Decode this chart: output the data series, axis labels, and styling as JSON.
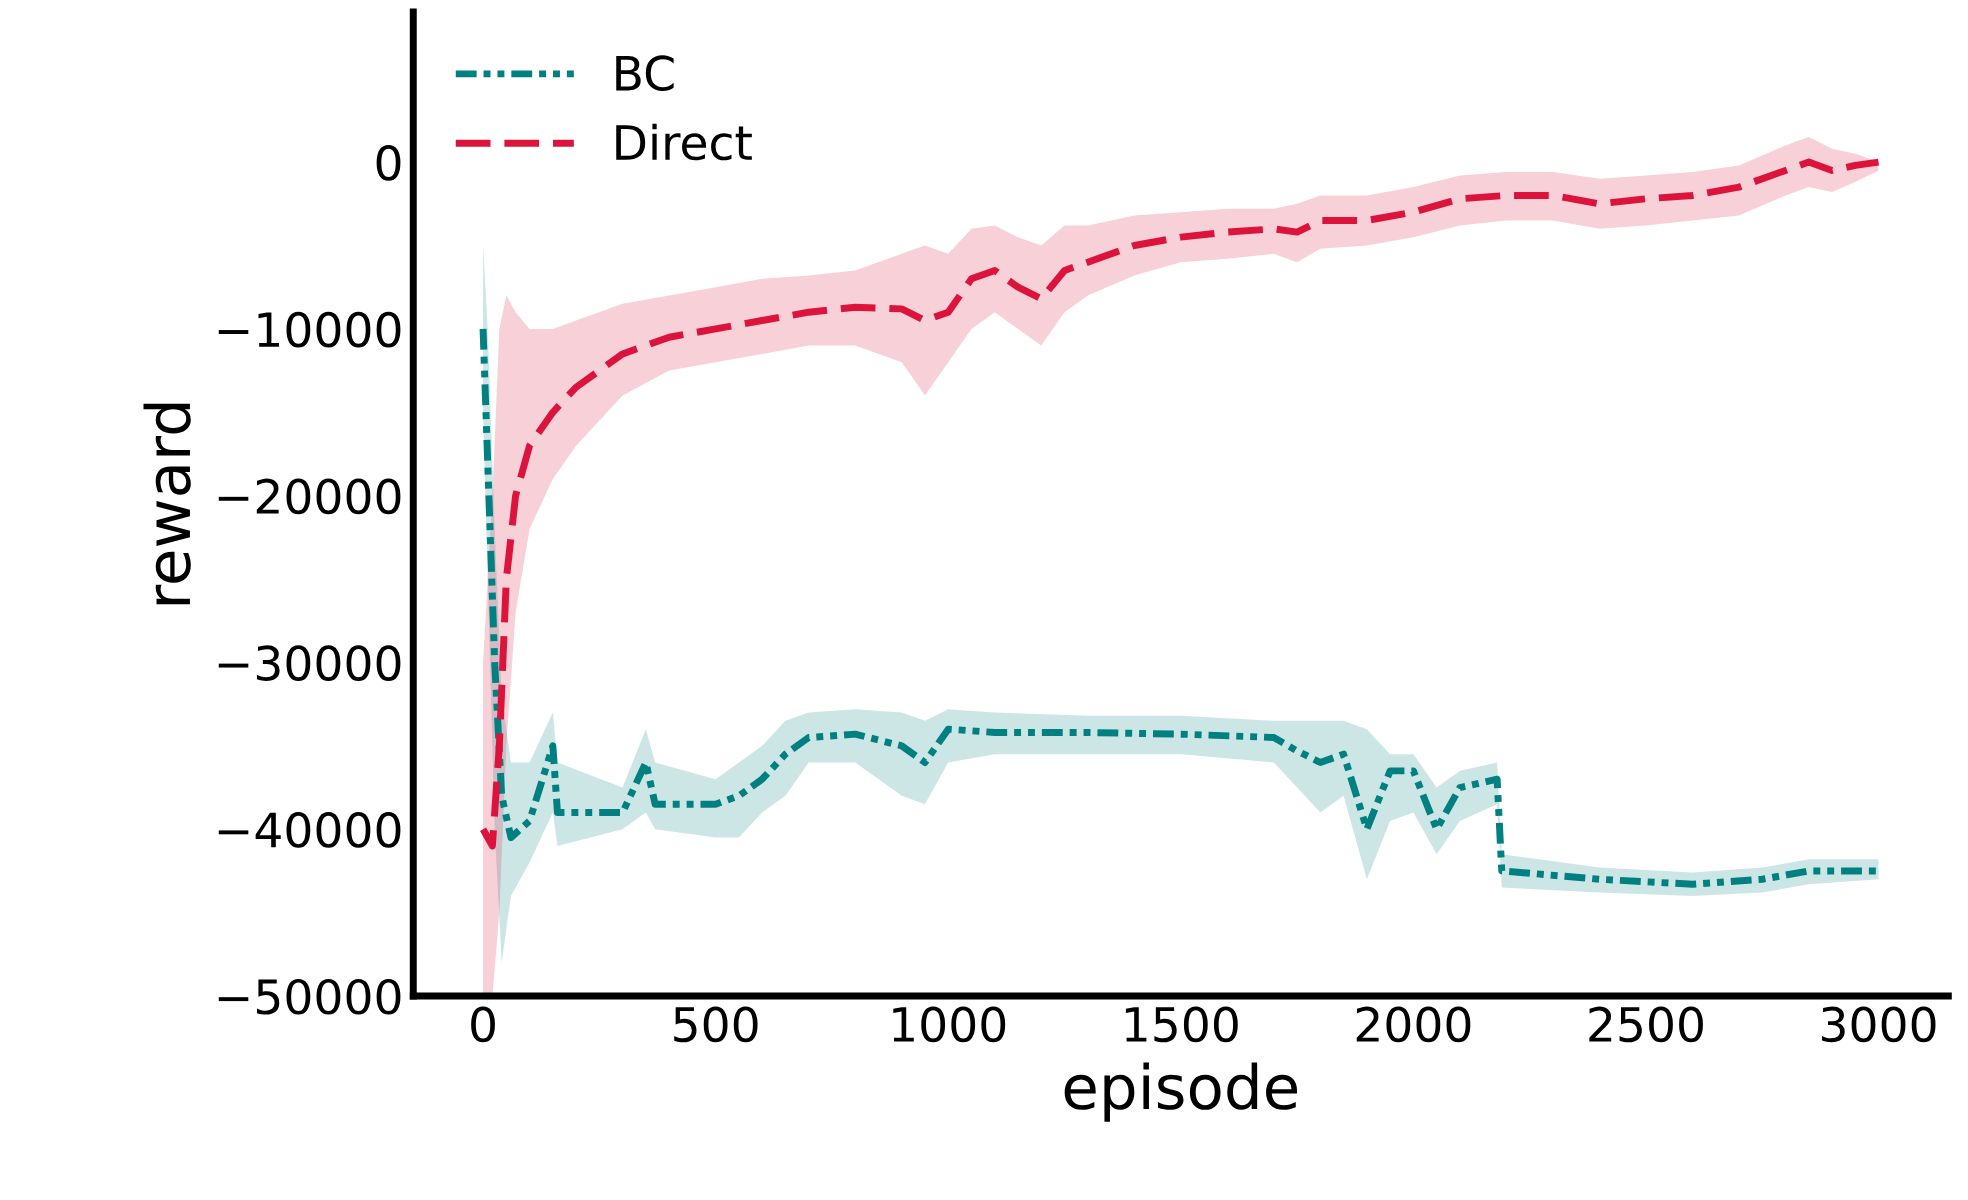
{
  "chart_data": {
    "type": "line",
    "xlabel": "episode",
    "ylabel": "reward",
    "xlim": [
      -150,
      3150
    ],
    "ylim": [
      -50000,
      9000
    ],
    "xticks": [
      0,
      500,
      1000,
      1500,
      2000,
      2500,
      3000
    ],
    "yticks": [
      {
        "value": 0,
        "label": "0"
      },
      {
        "value": -10000,
        "label": "−10000"
      },
      {
        "value": -20000,
        "label": "−20000"
      },
      {
        "value": -30000,
        "label": "−30000"
      },
      {
        "value": -40000,
        "label": "−40000"
      },
      {
        "value": -50000,
        "label": "−50000"
      }
    ],
    "grid": false,
    "legend": "top left",
    "marker": "none",
    "series": [
      {
        "name": "BC",
        "color": "#008080",
        "line_style": "dashdot",
        "x": [
          0,
          10,
          25,
          40,
          60,
          100,
          150,
          160,
          300,
          350,
          370,
          500,
          550,
          600,
          650,
          700,
          800,
          900,
          950,
          1000,
          1100,
          1300,
          1500,
          1700,
          1750,
          1800,
          1850,
          1900,
          1950,
          2000,
          2050,
          2100,
          2180,
          2190,
          2400,
          2600,
          2750,
          2850,
          3000
        ],
        "values": [
          -10000,
          -18000,
          -30000,
          -38000,
          -40500,
          -39500,
          -35000,
          -39000,
          -39000,
          -36000,
          -38500,
          -38500,
          -38000,
          -37000,
          -35500,
          -34500,
          -34300,
          -35000,
          -36000,
          -34000,
          -34200,
          -34200,
          -34300,
          -34500,
          -35300,
          -36000,
          -35500,
          -40000,
          -36500,
          -36500,
          -40000,
          -37500,
          -37000,
          -42500,
          -43000,
          -43300,
          -43000,
          -42500,
          -42500
        ],
        "lower": [
          -15000,
          -25000,
          -40000,
          -48000,
          -44000,
          -42000,
          -39000,
          -41000,
          -40000,
          -39000,
          -40000,
          -40500,
          -40500,
          -39000,
          -38000,
          -36000,
          -36000,
          -38000,
          -38500,
          -36000,
          -35500,
          -35500,
          -35500,
          -36000,
          -37500,
          -39000,
          -38000,
          -43000,
          -39500,
          -39000,
          -41500,
          -39500,
          -38500,
          -43500,
          -43800,
          -44000,
          -43800,
          -43300,
          -43000
        ],
        "upper": [
          -5000,
          -10000,
          -22000,
          -32000,
          -36000,
          -36000,
          -33000,
          -36000,
          -37500,
          -34000,
          -36000,
          -37000,
          -36000,
          -35000,
          -33500,
          -33000,
          -32800,
          -33000,
          -33500,
          -32800,
          -33000,
          -33200,
          -33200,
          -33500,
          -33500,
          -33500,
          -33500,
          -34000,
          -35500,
          -35500,
          -37500,
          -36500,
          -36000,
          -41500,
          -42300,
          -42600,
          -42300,
          -41800,
          -41800
        ]
      },
      {
        "name": "Direct",
        "color": "#dc143c",
        "line_style": "dashed",
        "x": [
          0,
          20,
          35,
          50,
          70,
          100,
          150,
          200,
          300,
          400,
          500,
          600,
          700,
          800,
          900,
          950,
          1000,
          1050,
          1100,
          1150,
          1200,
          1250,
          1300,
          1400,
          1500,
          1600,
          1700,
          1750,
          1800,
          1900,
          2000,
          2100,
          2200,
          2300,
          2400,
          2500,
          2600,
          2700,
          2800,
          2850,
          2900,
          2950,
          3000
        ],
        "values": [
          -40000,
          -41000,
          -35000,
          -25000,
          -20000,
          -17000,
          -15000,
          -13500,
          -11500,
          -10500,
          -10000,
          -9500,
          -9000,
          -8700,
          -8800,
          -9500,
          -9000,
          -7000,
          -6500,
          -7500,
          -8200,
          -6500,
          -6000,
          -5000,
          -4500,
          -4200,
          -4000,
          -4200,
          -3500,
          -3500,
          -3000,
          -2200,
          -2000,
          -2000,
          -2500,
          -2200,
          -2000,
          -1500,
          -500,
          0,
          -500,
          -200,
          0
        ],
        "lower": [
          -50000,
          -50000,
          -45000,
          -35000,
          -27000,
          -22000,
          -19000,
          -17000,
          -14000,
          -12500,
          -12000,
          -11500,
          -11000,
          -11000,
          -12000,
          -14000,
          -12000,
          -10000,
          -9000,
          -10000,
          -11000,
          -9000,
          -8000,
          -6800,
          -6000,
          -5800,
          -5500,
          -6000,
          -5200,
          -5000,
          -4500,
          -3800,
          -3500,
          -3500,
          -4000,
          -3800,
          -3500,
          -3200,
          -2000,
          -1500,
          -1800,
          -1200,
          -500
        ],
        "upper": [
          -30000,
          -20000,
          -10000,
          -8000,
          -9000,
          -10000,
          -10000,
          -9500,
          -8500,
          -8000,
          -7500,
          -7000,
          -6800,
          -6500,
          -5500,
          -5000,
          -5500,
          -4000,
          -3800,
          -4500,
          -5000,
          -3800,
          -3800,
          -3200,
          -3000,
          -2800,
          -2800,
          -2500,
          -2000,
          -2000,
          -1500,
          -800,
          -600,
          -600,
          -1000,
          -800,
          -600,
          -200,
          1000,
          1500,
          800,
          500,
          0
        ]
      }
    ]
  }
}
